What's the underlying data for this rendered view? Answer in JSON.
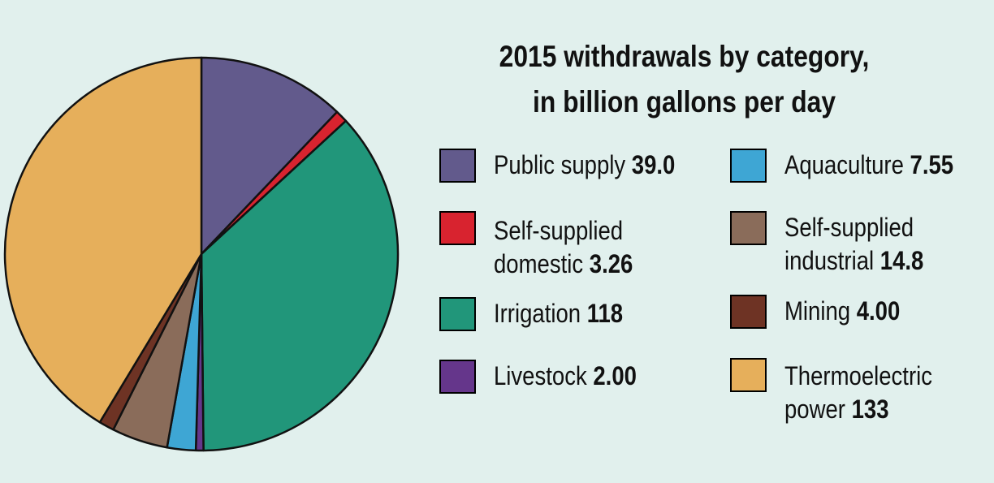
{
  "chart_data": {
    "type": "pie",
    "title": "2015 withdrawals by category,",
    "subtitle": "in billion gallons per day",
    "slices": [
      {
        "label": "Public supply",
        "value": 39.0,
        "display": "39.0",
        "color": "#625a8c"
      },
      {
        "label": "Self-supplied domestic",
        "line1": "Self-supplied",
        "line2": "domestic",
        "value": 3.26,
        "display": "3.26",
        "color": "#d8232f"
      },
      {
        "label": "Irrigation",
        "value": 118,
        "display": "118",
        "color": "#21967a"
      },
      {
        "label": "Livestock",
        "value": 2.0,
        "display": "2.00",
        "color": "#65368b"
      },
      {
        "label": "Aquaculture",
        "value": 7.55,
        "display": "7.55",
        "color": "#3ea6d4"
      },
      {
        "label": "Self-supplied industrial",
        "line1": "Self-supplied",
        "line2": "industrial",
        "value": 14.8,
        "display": "14.8",
        "color": "#8a6c5a"
      },
      {
        "label": "Mining",
        "value": 4.0,
        "display": "4.00",
        "color": "#6e3324"
      },
      {
        "label": "Thermoelectric power",
        "line1": "Thermoelectric",
        "line2": "power",
        "value": 133,
        "display": "133",
        "color": "#e6af5b"
      }
    ]
  }
}
